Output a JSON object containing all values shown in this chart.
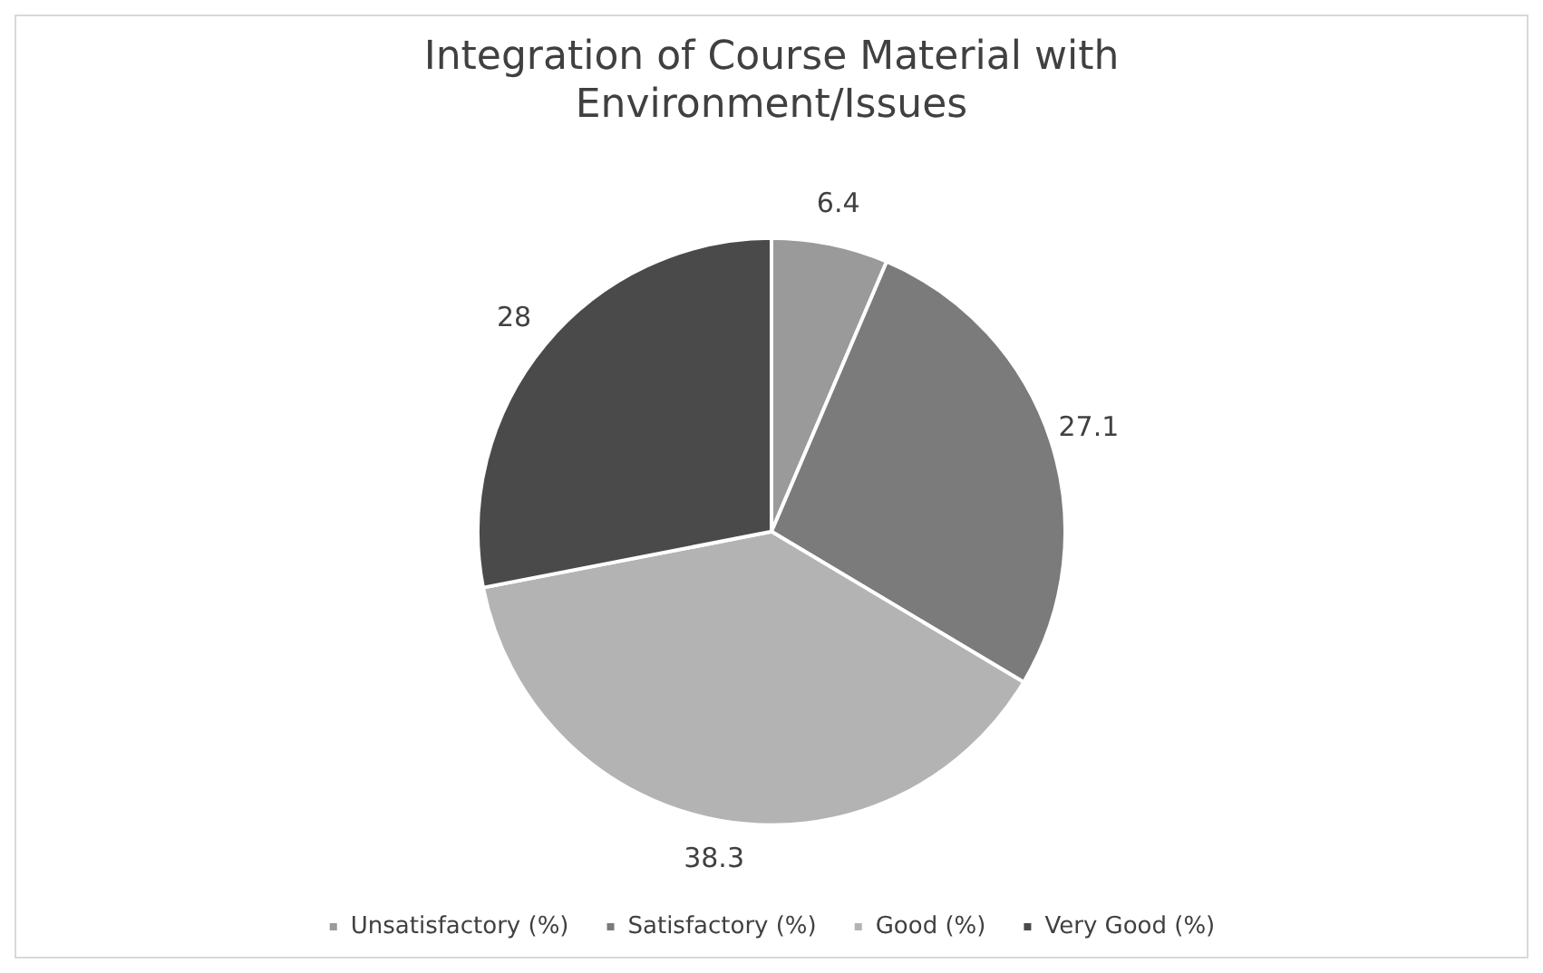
{
  "chart_data": {
    "type": "pie",
    "title": [
      "Integration of Course Material with",
      "Environment/Issues"
    ],
    "categories": [
      "Unsatisfactory (%)",
      "Satisfactory (%)",
      "Good (%)",
      "Very Good (%)"
    ],
    "values": [
      6.4,
      27.1,
      38.3,
      28
    ],
    "colors": [
      "#9a9a9a",
      "#7b7b7b",
      "#b3b3b3",
      "#4a4a4a"
    ],
    "data_labels": true,
    "legend": "bottom"
  }
}
